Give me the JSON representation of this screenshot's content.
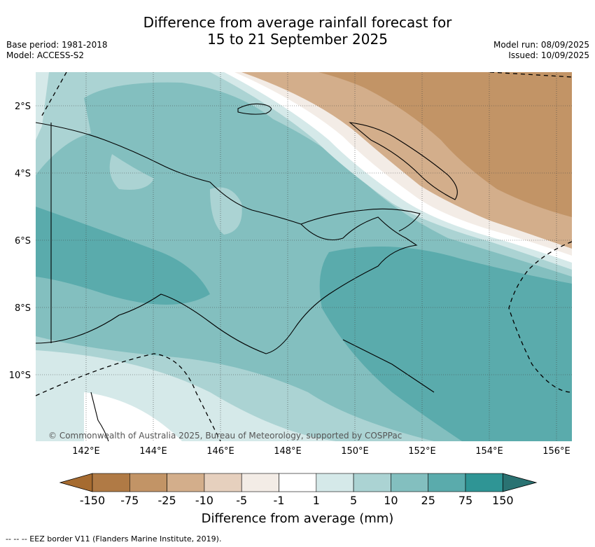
{
  "title_line1": "Difference from average rainfall forecast for",
  "title_line2": "15 to 21 September 2025",
  "meta_left": {
    "base_period": "Base period: 1981-2018",
    "model": "Model: ACCESS-S2"
  },
  "meta_right": {
    "model_run": "Model run: 08/09/2025",
    "issued": "Issued: 10/09/2025"
  },
  "copyright": "© Commonwealth of Australia 2025, Bureau of Meteorology, supported by COSPPac",
  "x_ticks": [
    "142°E",
    "144°E",
    "146°E",
    "148°E",
    "150°E",
    "152°E",
    "154°E",
    "156°E"
  ],
  "y_ticks": [
    "2°S",
    "4°S",
    "6°S",
    "8°S",
    "10°S"
  ],
  "colorbar": {
    "labels": [
      "-150",
      "-75",
      "-25",
      "-10",
      "-5",
      "-1",
      "1",
      "5",
      "10",
      "25",
      "75",
      "150"
    ],
    "colors": [
      "#a66b30",
      "#b07a45",
      "#c29466",
      "#d3ae8b",
      "#e6d0be",
      "#f3ece6",
      "#ffffff",
      "#d5e9e9",
      "#abd3d3",
      "#83bfbf",
      "#5aabac",
      "#2f9595",
      "#2a7272"
    ],
    "title": "Difference from average (mm)"
  },
  "footer": "-- -- -- EEZ border V11 (Flanders Marine Institute, 2019)."
}
